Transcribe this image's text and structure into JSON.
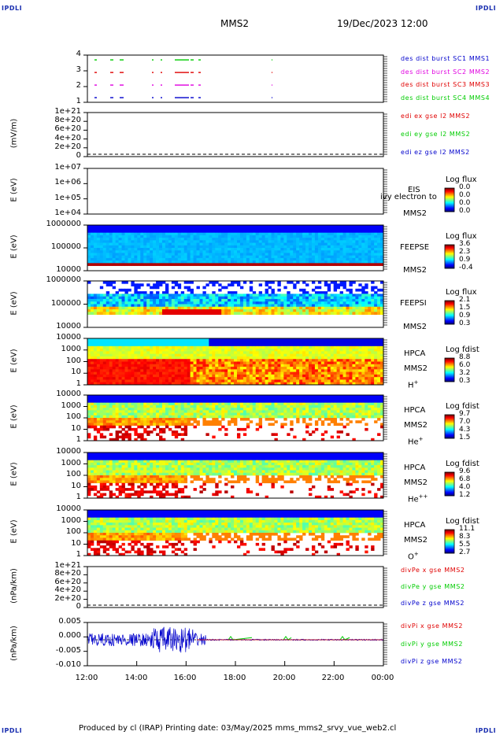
{
  "header": {
    "corner_label": "IPDLI",
    "spacecraft": "MMS2",
    "datetime": "19/Dec/2023 12:00"
  },
  "footer": {
    "text": "Produced by cl (IRAP)    Printing date: 03/May/2025    mms_mms2_srvy_vue_web2.cl"
  },
  "x_axis": {
    "ticks": [
      "12:00",
      "14:00",
      "16:00",
      "18:00",
      "20:00",
      "22:00",
      "00:00"
    ]
  },
  "colors": {
    "red": "#e00000",
    "magenta": "#e000e0",
    "green": "#00cc00",
    "blue": "#0000cc"
  },
  "chart_data": [
    {
      "panel": "burst",
      "type": "scatter",
      "y_ticks": [
        "4",
        "3",
        "2",
        "1"
      ],
      "legend": [
        {
          "text": "des dist burst SC1 MMS1",
          "color": "#0000cc"
        },
        {
          "text": "des dist burst SC2 MMS2",
          "color": "#e000e0"
        },
        {
          "text": "des dist burst SC3 MMS3",
          "color": "#e00000"
        },
        {
          "text": "des dist burst SC4 MMS4",
          "color": "#00cc00"
        }
      ]
    },
    {
      "panel": "edi",
      "type": "line",
      "ylabel": "(mV/m)",
      "y_ticks": [
        "1e+21",
        "8e+20",
        "6e+20",
        "4e+20",
        "2e+20",
        "0"
      ],
      "legend": [
        {
          "text": "edi ex gse l2 MMS2",
          "color": "#e00000"
        },
        {
          "text": "edi ey gse l2 MMS2",
          "color": "#00cc00"
        },
        {
          "text": "edi ez gse l2 MMS2",
          "color": "#0000cc"
        }
      ]
    },
    {
      "panel": "eis",
      "type": "heatmap",
      "ylabel": "E (eV)",
      "y_ticks": [
        "1e+07",
        "1e+06",
        "1e+05",
        "1e+04"
      ],
      "instrument": "EIS",
      "overlap_text": "ivy electron to",
      "sc": "MMS2",
      "cbar_title": "Log flux",
      "cbar_ticks": [
        "0.0",
        "0.0",
        "0.0",
        "0.0"
      ]
    },
    {
      "panel": "feepse",
      "type": "heatmap",
      "ylabel": "E (eV)",
      "y_ticks": [
        "1000000",
        "100000",
        "10000"
      ],
      "instrument": "FEEPSE",
      "sc": "MMS2",
      "cbar_title": "Log flux",
      "cbar_ticks": [
        "3.6",
        "2.3",
        "0.9",
        "-0.4"
      ]
    },
    {
      "panel": "feepsi",
      "type": "heatmap",
      "ylabel": "E (eV)",
      "y_ticks": [
        "1000000",
        "100000",
        "10000"
      ],
      "instrument": "FEEPSI",
      "sc": "MMS2",
      "cbar_title": "Log flux",
      "cbar_ticks": [
        "2.1",
        "1.5",
        "0.9",
        "0.3"
      ]
    },
    {
      "panel": "hpca_h",
      "type": "heatmap",
      "ylabel": "E (eV)",
      "y_ticks": [
        "10000",
        "1000",
        "100",
        "10",
        "1"
      ],
      "instrument": "HPCA",
      "sc": "MMS2",
      "species": "H",
      "species_sup": "+",
      "cbar_title": "Log fdist",
      "cbar_ticks": [
        "8.8",
        "6.0",
        "3.2",
        "0.3"
      ]
    },
    {
      "panel": "hpca_he",
      "type": "heatmap",
      "ylabel": "E (eV)",
      "y_ticks": [
        "10000",
        "1000",
        "100",
        "10",
        "1"
      ],
      "instrument": "HPCA",
      "sc": "MMS2",
      "species": "He",
      "species_sup": "+",
      "cbar_title": "Log fdist",
      "cbar_ticks": [
        "9.7",
        "7.0",
        "4.3",
        "1.5"
      ]
    },
    {
      "panel": "hpca_hepp",
      "type": "heatmap",
      "ylabel": "E (eV)",
      "y_ticks": [
        "10000",
        "1000",
        "100",
        "10",
        "1"
      ],
      "instrument": "HPCA",
      "sc": "MMS2",
      "species": "He",
      "species_sup": "++",
      "cbar_title": "Log fdist",
      "cbar_ticks": [
        "9.6",
        "6.8",
        "4.0",
        "1.2"
      ]
    },
    {
      "panel": "hpca_o",
      "type": "heatmap",
      "ylabel": "E (eV)",
      "y_ticks": [
        "10000",
        "1000",
        "100",
        "10",
        "1"
      ],
      "instrument": "HPCA",
      "sc": "MMS2",
      "species": "O",
      "species_sup": "+",
      "cbar_title": "Log fdist",
      "cbar_ticks": [
        "11.1",
        "8.3",
        "5.5",
        "2.7"
      ]
    },
    {
      "panel": "divpe",
      "type": "line",
      "ylabel": "(nPa/km)",
      "y_ticks": [
        "1e+21",
        "8e+20",
        "6e+20",
        "4e+20",
        "2e+20",
        "0"
      ],
      "legend": [
        {
          "text": "divPe x gse MMS2",
          "color": "#e00000"
        },
        {
          "text": "divPe y gse MMS2",
          "color": "#00cc00"
        },
        {
          "text": "divPe z gse MMS2",
          "color": "#0000cc"
        }
      ]
    },
    {
      "panel": "divpi",
      "type": "line",
      "ylabel": "(nPa/km)",
      "y_ticks": [
        "0.005",
        "0.000",
        "-0.005",
        "-0.010"
      ],
      "ylim": [
        -0.012,
        0.008
      ],
      "legend": [
        {
          "text": "divPi x gse MMS2",
          "color": "#e00000"
        },
        {
          "text": "divPi y gse MMS2",
          "color": "#00cc00"
        },
        {
          "text": "divPi z gse MMS2",
          "color": "#0000cc"
        }
      ]
    }
  ]
}
